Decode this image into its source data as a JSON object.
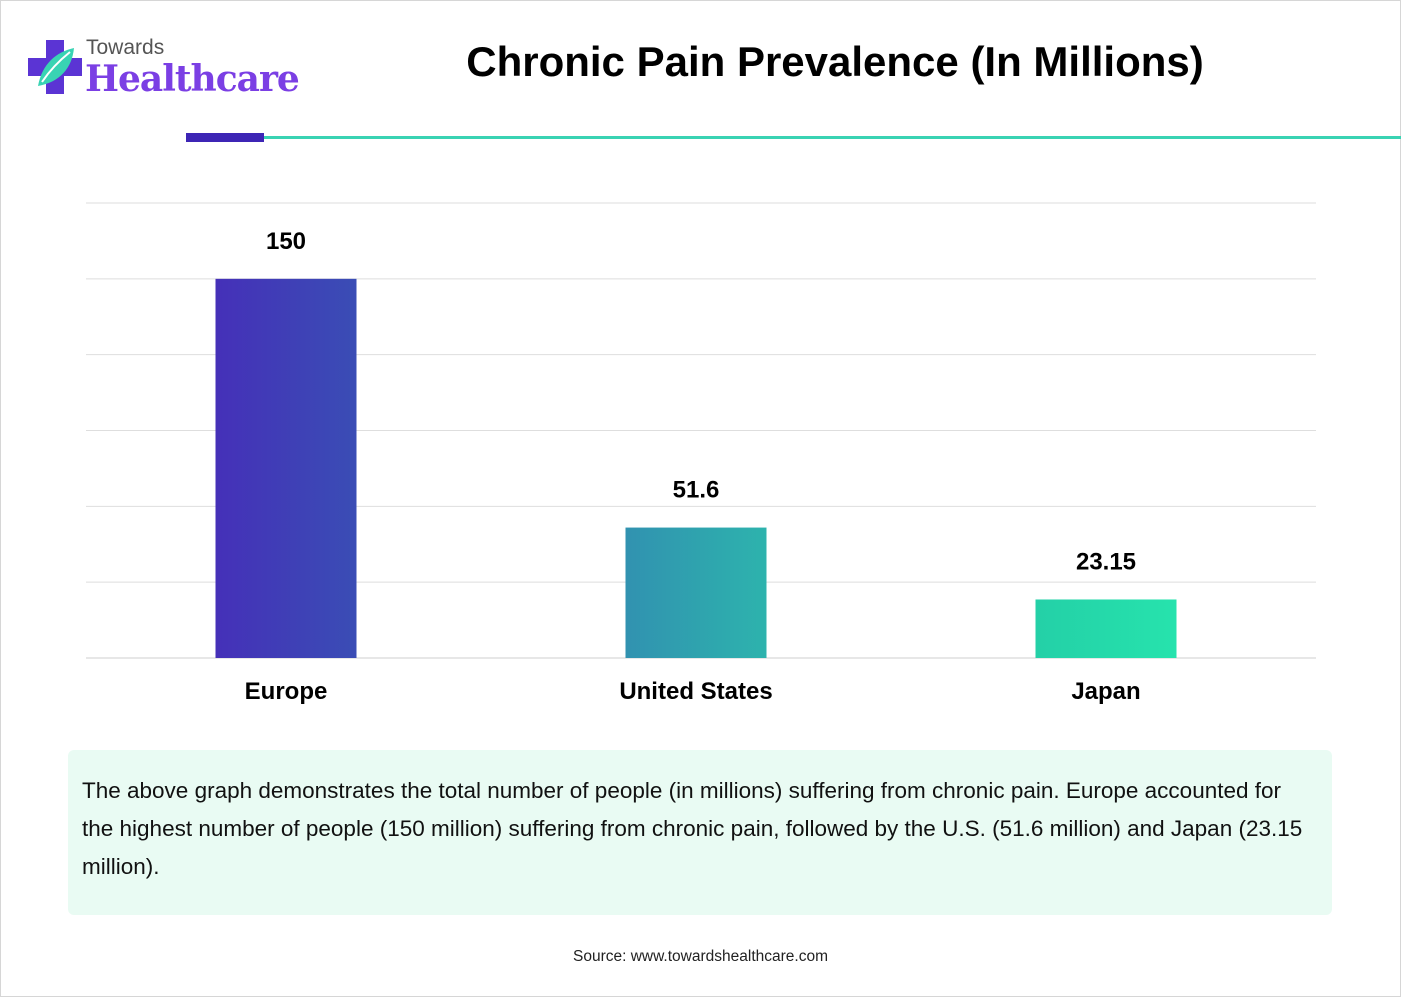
{
  "brand": {
    "top": "Towards",
    "main": "Healthcare",
    "icon": "medical-cross-leaf-icon",
    "colors": {
      "cross": "#5b34d4",
      "leaf": "#39d3b3",
      "text": "#7b3fe4"
    }
  },
  "chart_data": {
    "type": "bar",
    "title": "Chronic Pain Prevalence (In Millions)",
    "xlabel": "",
    "ylabel": "",
    "categories": [
      "Europe",
      "United States",
      "Japan"
    ],
    "values": [
      150,
      51.6,
      23.15
    ],
    "value_labels": [
      "150",
      "51.6",
      "23.15"
    ],
    "ylim": [
      0,
      180
    ],
    "grid": true,
    "legend": "none",
    "bar_gradients": [
      [
        "#4530b8",
        "#3a4db5"
      ],
      [
        "#3192b0",
        "#2db3ad"
      ],
      [
        "#24d0a7",
        "#26e3ad"
      ]
    ]
  },
  "description": "The above graph demonstrates the total number of people (in millions) suffering from chronic pain. Europe accounted for the highest number of people (150 million) suffering from chronic pain, followed by the U.S. (51.6 million) and Japan (23.15 million).",
  "source": "Source: www.towardshealthcare.com"
}
